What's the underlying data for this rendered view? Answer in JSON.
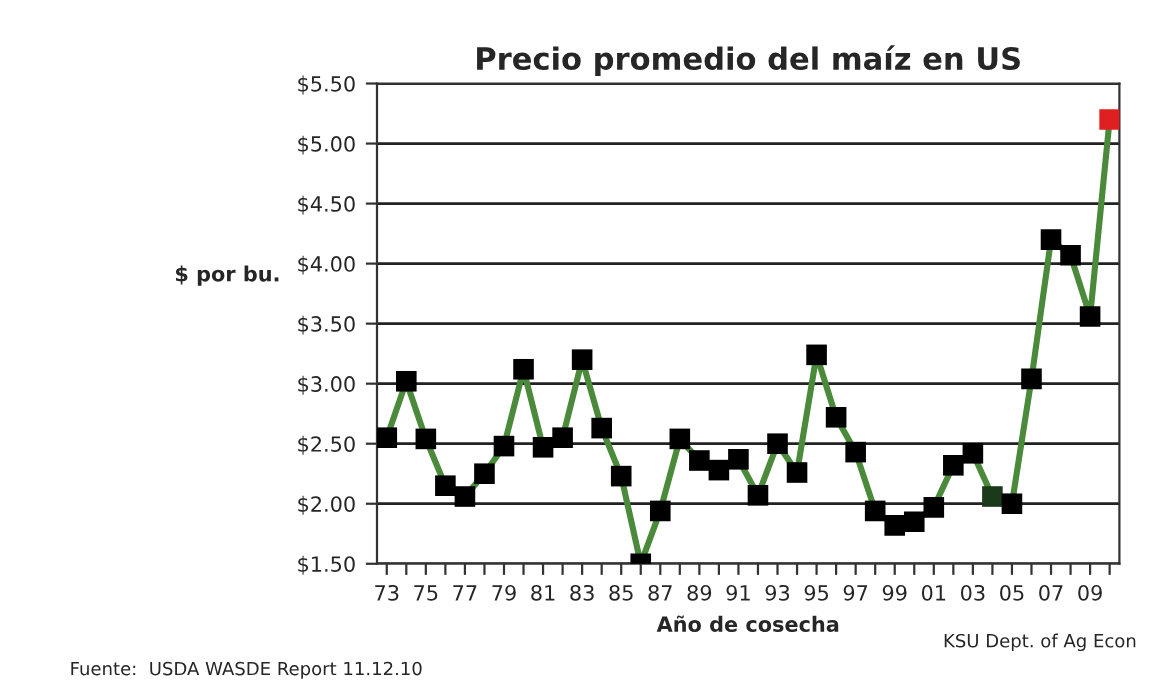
{
  "chart_data": {
    "type": "line",
    "title": "Precio promedio del maíz en US",
    "xlabel": "Año de cosecha",
    "ylabel": "$ por bu.",
    "categories": [
      "73",
      null,
      "75",
      null,
      "77",
      null,
      "79",
      null,
      "81",
      null,
      "83",
      null,
      "85",
      null,
      "87",
      null,
      "89",
      null,
      "91",
      null,
      "93",
      null,
      "95",
      null,
      "97",
      null,
      "99",
      null,
      "01",
      null,
      "03",
      null,
      "05",
      null,
      "07",
      null,
      "09",
      null
    ],
    "series": [
      {
        "color": "#4a8a3a",
        "values": [
          2.55,
          3.02,
          2.54,
          2.15,
          2.06,
          2.25,
          2.48,
          3.12,
          2.47,
          2.55,
          3.2,
          2.63,
          2.23,
          1.5,
          1.94,
          2.54,
          2.36,
          2.28,
          2.37,
          2.07,
          2.5,
          2.26,
          3.24,
          2.72,
          2.43,
          1.94,
          1.82,
          1.85,
          1.97,
          2.32,
          2.42,
          2.06,
          2.0,
          3.04,
          4.2,
          4.07,
          3.56,
          5.2
        ],
        "colors": [
          "#000000",
          "#000000",
          "#000000",
          "#000000",
          "#000000",
          "#000000",
          "#000000",
          "#000000",
          "#000000",
          "#000000",
          "#000000",
          "#000000",
          "#000000",
          "#000000",
          "#000000",
          "#000000",
          "#000000",
          "#000000",
          "#000000",
          "#000000",
          "#000000",
          "#000000",
          "#000000",
          "#000000",
          "#000000",
          "#000000",
          "#000000",
          "#000000",
          "#000000",
          "#000000",
          "#000000",
          "#1a3a1a",
          "#000000",
          "#000000",
          "#000000",
          "#000000",
          "#000000",
          "#e02020"
        ]
      }
    ],
    "ylim": [
      1.5,
      5.5
    ],
    "yticks": [
      {
        "value": 1.5,
        "label": "$1.50"
      },
      {
        "value": 2.0,
        "label": "$2.00"
      },
      {
        "value": 2.5,
        "label": "$2.50"
      },
      {
        "value": 3.0,
        "label": "$3.00"
      },
      {
        "value": 3.5,
        "label": "$3.50"
      },
      {
        "value": 4.0,
        "label": "$4.00"
      },
      {
        "value": 4.5,
        "label": "$4.50"
      },
      {
        "value": 5.0,
        "label": "$5.00"
      },
      {
        "value": 5.5,
        "label": "$5.50"
      }
    ],
    "grid": "y",
    "marker": "square",
    "line_style": "solid",
    "legend": false,
    "annotations": [
      "Fuente:  USDA WASDE Report 11.12.10",
      "KSU Dept. of Ag Econ"
    ]
  }
}
